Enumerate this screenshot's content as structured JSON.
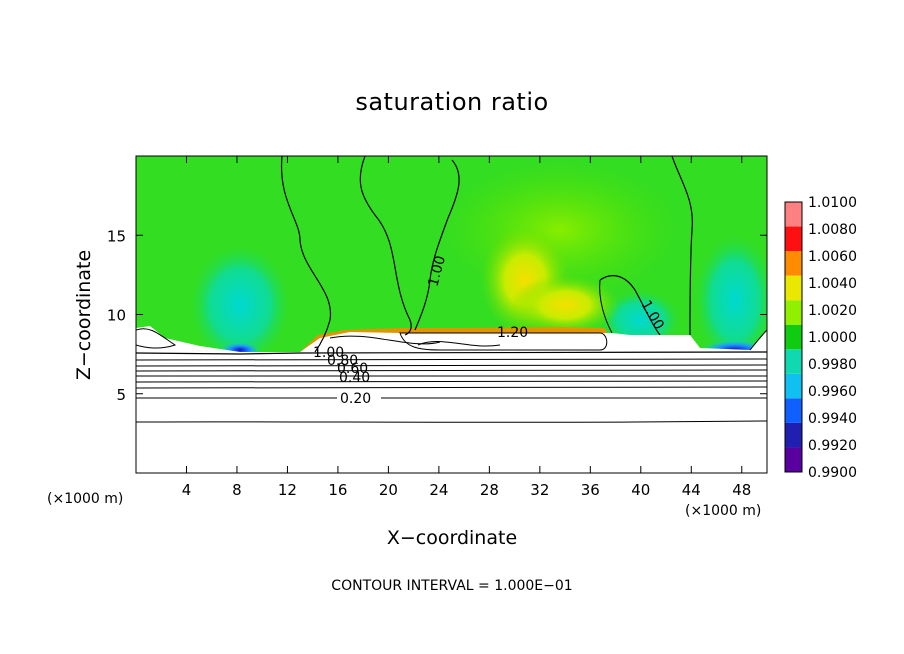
{
  "chart_data": {
    "type": "heatmap",
    "title": "saturation ratio",
    "xlabel": "X−coordinate",
    "ylabel": "Z−coordinate",
    "x_unit": "(×1000 m)",
    "z_unit": "(×1000 m)",
    "xlim": [
      0,
      50
    ],
    "ylim": [
      0,
      20
    ],
    "x_ticks": [
      4,
      8,
      12,
      16,
      20,
      24,
      28,
      32,
      36,
      40,
      44,
      48
    ],
    "y_ticks": [
      5,
      10,
      15
    ],
    "colorbar": {
      "levels": [
        "0.9900",
        "0.9920",
        "0.9940",
        "0.9960",
        "0.9980",
        "1.0000",
        "1.0020",
        "1.0040",
        "1.0060",
        "1.0080",
        "1.0100"
      ],
      "colors": [
        "#5a00a0",
        "#2020b0",
        "#1060ff",
        "#10c0f0",
        "#10d8b0",
        "#10cc10",
        "#90f000",
        "#e8e800",
        "#ff8c00",
        "#ff1010",
        "#ff8080"
      ]
    },
    "contour_labels": [
      "1.00",
      "1.00",
      "1.20",
      "1.00",
      "0.80",
      "0.60",
      "0.40",
      "0.20"
    ],
    "footer": "CONTOUR INTERVAL = 1.000E−01"
  },
  "colors": {
    "background_field": "#33dd22",
    "low_region": "#ffffff"
  }
}
